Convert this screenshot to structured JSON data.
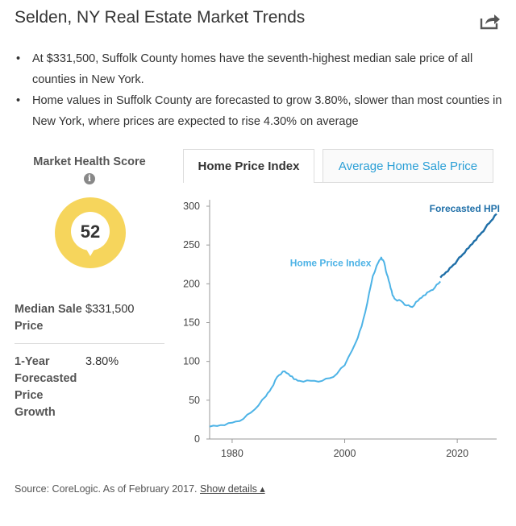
{
  "header": {
    "title": "Selden, NY Real Estate Market Trends",
    "share_icon": "share-icon"
  },
  "bullets": [
    "At $331,500, Suffolk County homes have the seventh-highest median sale price of all counties in New York.",
    "Home values in Suffolk County are forecasted to grow 3.80%, slower than most counties in New York, where prices are expected to rise 4.30% on average"
  ],
  "market_health": {
    "title": "Market Health Score",
    "info_icon": "info-icon",
    "score": "52",
    "gauge_color": "#f6d55c"
  },
  "stats": [
    {
      "label": "Median Sale Price",
      "value": "$331,500"
    },
    {
      "label": "1-Year Forecasted Price Growth",
      "value": "3.80%"
    }
  ],
  "tabs": [
    {
      "label": "Home Price Index",
      "active": true
    },
    {
      "label": "Average Home Sale Price",
      "active": false
    }
  ],
  "source": {
    "text": "Source: CoreLogic. As of February 2017.",
    "link": "Show details ▴"
  },
  "colors": {
    "accent": "#2a9fd6",
    "hpi_line": "#4db3e6",
    "forecast_line": "#1f6fa8"
  },
  "chart_data": {
    "type": "line",
    "xlim": [
      1976,
      2027
    ],
    "ylim": [
      0,
      300
    ],
    "xticks": [
      1980,
      2000,
      2020
    ],
    "yticks": [
      0,
      50,
      100,
      150,
      200,
      250,
      300
    ],
    "grid": false,
    "series": [
      {
        "name": "Home Price Index",
        "color": "#4db3e6",
        "points": [
          [
            1976,
            16
          ],
          [
            1978,
            18
          ],
          [
            1980,
            21
          ],
          [
            1982,
            26
          ],
          [
            1984,
            38
          ],
          [
            1986,
            55
          ],
          [
            1987,
            66
          ],
          [
            1988,
            80
          ],
          [
            1989,
            87
          ],
          [
            1990,
            84
          ],
          [
            1991,
            77
          ],
          [
            1992,
            75
          ],
          [
            1994,
            75
          ],
          [
            1996,
            75
          ],
          [
            1998,
            80
          ],
          [
            2000,
            95
          ],
          [
            2002,
            125
          ],
          [
            2003,
            145
          ],
          [
            2004,
            175
          ],
          [
            2005,
            210
          ],
          [
            2006,
            228
          ],
          [
            2006.5,
            234
          ],
          [
            2007,
            228
          ],
          [
            2007.5,
            212
          ],
          [
            2008,
            200
          ],
          [
            2008.5,
            185
          ],
          [
            2009,
            180
          ],
          [
            2010,
            178
          ],
          [
            2011,
            172
          ],
          [
            2012,
            170
          ],
          [
            2013,
            178
          ],
          [
            2014,
            185
          ],
          [
            2015,
            190
          ],
          [
            2016,
            195
          ],
          [
            2017,
            203
          ]
        ]
      },
      {
        "name": "Forecasted HPI",
        "color": "#1f6fa8",
        "points": [
          [
            2017,
            208
          ],
          [
            2018,
            215
          ],
          [
            2019,
            222
          ],
          [
            2020,
            230
          ],
          [
            2021,
            238
          ],
          [
            2022,
            246
          ],
          [
            2023,
            255
          ],
          [
            2024,
            263
          ],
          [
            2025,
            272
          ],
          [
            2026,
            281
          ],
          [
            2027,
            290
          ]
        ]
      }
    ]
  }
}
